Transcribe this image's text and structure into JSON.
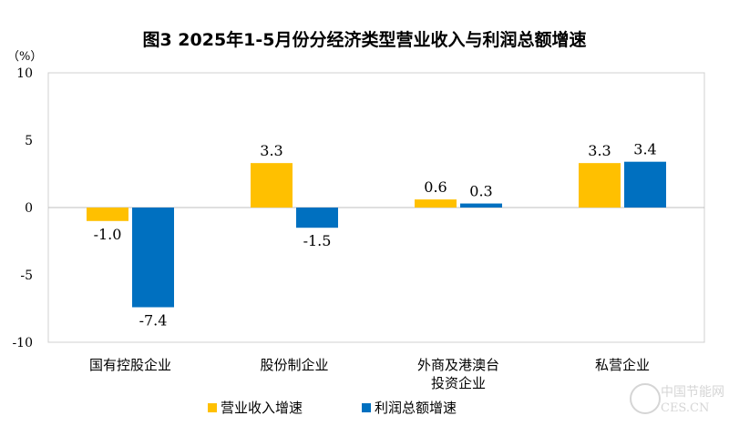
{
  "chart_data": {
    "type": "bar",
    "title": "图3  2025年1-5月份分经济类型营业收入与利润总额增速",
    "ylabel": "（%）",
    "ylim": [
      -10,
      10
    ],
    "yticks": [
      10,
      5,
      0,
      -5,
      -10
    ],
    "categories": [
      [
        "国有控股企业"
      ],
      [
        "股份制企业"
      ],
      [
        "外商及港澳台",
        "投资企业"
      ],
      [
        "私营企业"
      ]
    ],
    "series": [
      {
        "name": "营业收入增速",
        "color": "#FFC000",
        "values": [
          -1.0,
          3.3,
          0.6,
          3.3
        ]
      },
      {
        "name": "利润总额增速",
        "color": "#0070C0",
        "values": [
          -7.4,
          -1.5,
          0.3,
          3.4
        ]
      }
    ],
    "legend": "bottom",
    "grid": false
  },
  "watermark": {
    "line1": "中国节能网",
    "line2": "CES.CN"
  }
}
